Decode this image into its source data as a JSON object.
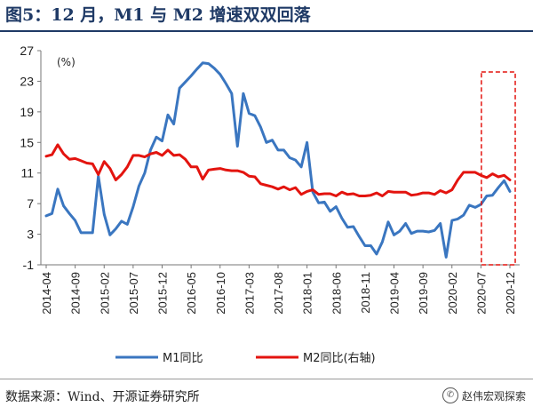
{
  "header": {
    "title": "图5：12 月，M1 与 M2 增速双双回落"
  },
  "footer": {
    "source": "数据来源：Wind、开源证券研究所",
    "brand": "赵伟宏观探索",
    "brand_icon": "wechat-icon"
  },
  "colors": {
    "title": "#1f3a66",
    "m1": "#3a76c0",
    "m2": "#e3140f",
    "highlight_box": "#e3140f"
  },
  "chart_data": {
    "type": "line",
    "unit_label": "(%)",
    "y_ticks": [
      27,
      23,
      19,
      15,
      11,
      7,
      3,
      -1
    ],
    "ylim": [
      -1,
      27
    ],
    "x_tick_labels": [
      "2014-04",
      "2014-09",
      "2015-02",
      "2015-07",
      "2015-12",
      "2016-05",
      "2016-10",
      "2017-03",
      "2017-08",
      "2018-01",
      "2018-06",
      "2018-11",
      "2019-04",
      "2019-09",
      "2020-02",
      "2020-07",
      "2020-12"
    ],
    "x": [
      "2014-04",
      "2014-05",
      "2014-06",
      "2014-07",
      "2014-08",
      "2014-09",
      "2014-10",
      "2014-11",
      "2014-12",
      "2015-01",
      "2015-02",
      "2015-03",
      "2015-04",
      "2015-05",
      "2015-06",
      "2015-07",
      "2015-08",
      "2015-09",
      "2015-10",
      "2015-11",
      "2015-12",
      "2016-01",
      "2016-02",
      "2016-03",
      "2016-04",
      "2016-05",
      "2016-06",
      "2016-07",
      "2016-08",
      "2016-09",
      "2016-10",
      "2016-11",
      "2016-12",
      "2017-01",
      "2017-02",
      "2017-03",
      "2017-04",
      "2017-05",
      "2017-06",
      "2017-07",
      "2017-08",
      "2017-09",
      "2017-10",
      "2017-11",
      "2017-12",
      "2018-01",
      "2018-02",
      "2018-03",
      "2018-04",
      "2018-05",
      "2018-06",
      "2018-07",
      "2018-08",
      "2018-09",
      "2018-10",
      "2018-11",
      "2018-12",
      "2019-01",
      "2019-02",
      "2019-03",
      "2019-04",
      "2019-05",
      "2019-06",
      "2019-07",
      "2019-08",
      "2019-09",
      "2019-10",
      "2019-11",
      "2019-12",
      "2020-01",
      "2020-02",
      "2020-03",
      "2020-04",
      "2020-05",
      "2020-06",
      "2020-07",
      "2020-08",
      "2020-09",
      "2020-10",
      "2020-11",
      "2020-12"
    ],
    "series": [
      {
        "name": "M1同比",
        "axis": "left",
        "values": [
          5.4,
          5.7,
          8.9,
          6.7,
          5.7,
          4.8,
          3.2,
          3.2,
          3.2,
          10.6,
          5.6,
          2.9,
          3.7,
          4.7,
          4.3,
          6.6,
          9.3,
          11.0,
          14.0,
          15.7,
          15.2,
          18.6,
          17.4,
          22.1,
          22.9,
          23.7,
          24.6,
          25.4,
          25.3,
          24.7,
          23.9,
          22.7,
          21.4,
          14.5,
          21.4,
          18.8,
          18.5,
          17.0,
          15.0,
          15.3,
          14.0,
          14.0,
          13.0,
          12.7,
          11.8,
          15.0,
          8.5,
          7.1,
          7.2,
          6.0,
          6.6,
          5.1,
          3.9,
          4.0,
          2.7,
          1.5,
          1.5,
          0.4,
          2.0,
          4.6,
          2.9,
          3.4,
          4.4,
          3.1,
          3.4,
          3.4,
          3.3,
          3.5,
          4.4,
          0.0,
          4.8,
          5.0,
          5.5,
          6.8,
          6.5,
          6.9,
          8.0,
          8.1,
          9.1,
          10.0,
          8.6
        ]
      },
      {
        "name": "M2同比(右轴)",
        "axis": "right",
        "values": [
          13.2,
          13.4,
          14.7,
          13.5,
          12.8,
          12.9,
          12.6,
          12.3,
          12.2,
          10.8,
          12.5,
          11.6,
          10.1,
          10.8,
          11.8,
          13.3,
          13.3,
          13.1,
          13.5,
          13.7,
          13.3,
          14.0,
          13.3,
          13.4,
          12.8,
          11.8,
          11.8,
          10.2,
          11.4,
          11.5,
          11.6,
          11.4,
          11.3,
          11.3,
          11.1,
          10.6,
          10.5,
          9.6,
          9.4,
          9.2,
          8.9,
          9.2,
          8.8,
          9.1,
          8.2,
          8.6,
          8.8,
          8.2,
          8.3,
          8.3,
          8.0,
          8.5,
          8.2,
          8.3,
          8.0,
          8.0,
          8.1,
          8.4,
          8.0,
          8.6,
          8.5,
          8.5,
          8.5,
          8.1,
          8.2,
          8.4,
          8.4,
          8.2,
          8.7,
          8.4,
          8.8,
          10.1,
          11.1,
          11.1,
          11.1,
          10.7,
          10.4,
          10.9,
          10.5,
          10.7,
          10.1
        ]
      }
    ],
    "legend": [
      "M1同比",
      "M2同比(右轴)"
    ],
    "legend_position": "bottom",
    "highlight": {
      "from": "2020-08",
      "to": "2020-12",
      "style": "dashed-box"
    }
  }
}
